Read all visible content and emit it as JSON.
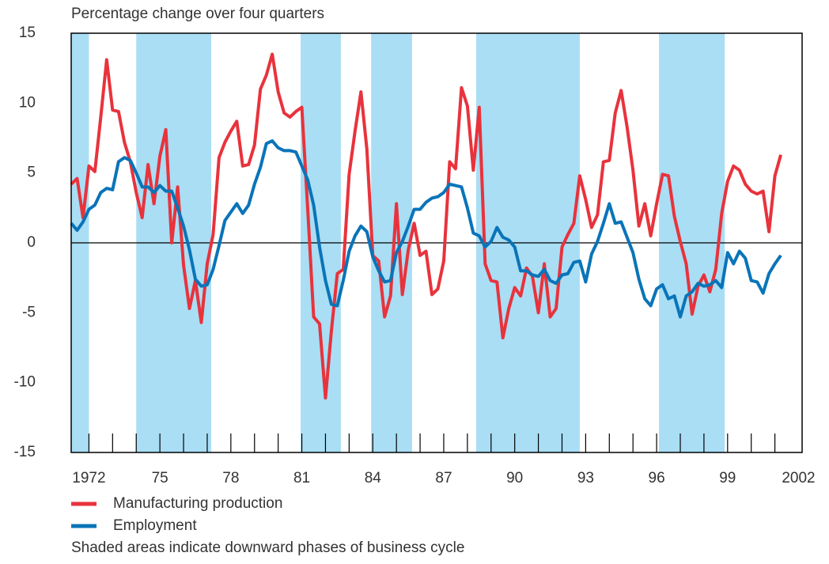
{
  "chart_data": {
    "type": "line",
    "title": "Percentage change over four quarters",
    "note": "Shaded areas indicate downward phases of business cycle",
    "xlim": [
      1971.25,
      2002.15
    ],
    "ylim": [
      -15,
      15
    ],
    "yticks": [
      -15,
      -10,
      -5,
      0,
      5,
      10,
      15
    ],
    "xticks": [
      1972,
      {
        "value": 1975,
        "label": "75"
      },
      {
        "value": 1978,
        "label": "78"
      },
      {
        "value": 1981,
        "label": "81"
      },
      {
        "value": 1984,
        "label": "84"
      },
      {
        "value": 1987,
        "label": "87"
      },
      {
        "value": 1990,
        "label": "90"
      },
      {
        "value": 1993,
        "label": "93"
      },
      {
        "value": 1996,
        "label": "96"
      },
      {
        "value": 1999,
        "label": "99"
      },
      2002
    ],
    "minor_xticks": [
      1972,
      1973,
      1974,
      1975,
      1976,
      1977,
      1978,
      1979,
      1980,
      1981,
      1982,
      1983,
      1984,
      1985,
      1986,
      1987,
      1988,
      1989,
      1990,
      1991,
      1992,
      1993,
      1994,
      1995,
      1996,
      1997,
      1998,
      1999,
      2000,
      2001
    ],
    "shaded": [
      [
        1971.25,
        1972.0
      ],
      [
        1974.0,
        1977.17
      ],
      [
        1980.95,
        1982.65
      ],
      [
        1983.93,
        1985.66
      ],
      [
        1988.37,
        1992.75
      ],
      [
        1996.1,
        1998.88
      ]
    ],
    "shade_color": "#a9def5",
    "zero_line": true,
    "x": [
      1971.25,
      1971.5,
      1971.75,
      1972,
      1972.25,
      1972.5,
      1972.75,
      1973,
      1973.25,
      1973.5,
      1973.75,
      1974,
      1974.25,
      1974.5,
      1974.75,
      1975,
      1975.25,
      1975.5,
      1975.75,
      1976,
      1976.25,
      1976.5,
      1976.75,
      1977,
      1977.25,
      1977.5,
      1977.75,
      1978,
      1978.25,
      1978.5,
      1978.75,
      1979,
      1979.25,
      1979.5,
      1979.75,
      1980,
      1980.25,
      1980.5,
      1980.75,
      1981,
      1981.25,
      1981.5,
      1981.75,
      1982,
      1982.25,
      1982.5,
      1982.75,
      1983,
      1983.25,
      1983.5,
      1983.75,
      1984,
      1984.25,
      1984.5,
      1984.75,
      1985,
      1985.25,
      1985.5,
      1985.75,
      1986,
      1986.25,
      1986.5,
      1986.75,
      1987,
      1987.25,
      1987.5,
      1987.75,
      1988,
      1988.25,
      1988.5,
      1988.75,
      1989,
      1989.25,
      1989.5,
      1989.75,
      1990,
      1990.25,
      1990.5,
      1990.75,
      1991,
      1991.25,
      1991.5,
      1991.75,
      1992,
      1992.25,
      1992.5,
      1992.75,
      1993,
      1993.25,
      1993.5,
      1993.75,
      1994,
      1994.25,
      1994.5,
      1994.75,
      1995,
      1995.25,
      1995.5,
      1995.75,
      1996,
      1996.25,
      1996.5,
      1996.75,
      1997,
      1997.25,
      1997.5,
      1997.75,
      1998,
      1998.25,
      1998.5,
      1998.75,
      1999,
      1999.25,
      1999.5,
      1999.75,
      2000,
      2000.25,
      2000.5,
      2000.75,
      2001,
      2001.25
    ],
    "series": [
      {
        "name": "Manufacturing production",
        "color": "#e8333c",
        "values": [
          4.2,
          4.6,
          1.8,
          5.5,
          5.1,
          9.0,
          13.1,
          9.5,
          9.4,
          7.2,
          5.8,
          3.6,
          1.8,
          5.6,
          2.8,
          6.2,
          8.1,
          0,
          4.0,
          -1.6,
          -4.7,
          -2.7,
          -5.7,
          -1.5,
          0.6,
          6.1,
          7.2,
          8.0,
          8.7,
          5.5,
          5.6,
          7.0,
          11.0,
          12.0,
          13.5,
          10.8,
          9.3,
          9.0,
          9.4,
          9.7,
          2.4,
          -5.3,
          -5.8,
          -11.1,
          -6.3,
          -2.2,
          -1.9,
          4.9,
          8.0,
          10.8,
          6.7,
          -0.9,
          -1.3,
          -5.3,
          -3.8,
          2.8,
          -3.7,
          -0.5,
          1.4,
          -0.9,
          -0.6,
          -3.7,
          -3.3,
          -1.3,
          5.8,
          5.3,
          11.1,
          9.8,
          5.2,
          9.7,
          -1.5,
          -2.7,
          -2.8,
          -6.8,
          -4.7,
          -3.2,
          -3.8,
          -1.8,
          -2.4,
          -5.0,
          -1.5,
          -5.3,
          -4.7,
          -0.3,
          0.6,
          1.4,
          4.8,
          3.1,
          1.1,
          2.0,
          5.8,
          5.9,
          9.3,
          10.9,
          8.3,
          5.2,
          1.2,
          2.8,
          0.5,
          2.8,
          4.9,
          4.8,
          1.9,
          0.1,
          -1.5,
          -5.1,
          -3.1,
          -2.3,
          -3.5,
          -1.9,
          2.1,
          4.4,
          5.5,
          5.2,
          4.2,
          3.7,
          3.5,
          3.7,
          0.8,
          4.8,
          6.3
        ]
      },
      {
        "name": "Employment",
        "color": "#0a74b8",
        "values": [
          1.4,
          0.9,
          1.5,
          2.4,
          2.7,
          3.6,
          3.9,
          3.8,
          5.8,
          6.1,
          5.9,
          5.0,
          4.0,
          4.0,
          3.6,
          4.1,
          3.7,
          3.7,
          2.5,
          1.2,
          -0.5,
          -2.6,
          -3.1,
          -3.0,
          -1.9,
          -0.2,
          1.6,
          2.2,
          2.8,
          2.1,
          2.7,
          4.2,
          5.4,
          7.1,
          7.3,
          6.8,
          6.6,
          6.6,
          6.5,
          5.5,
          4.5,
          2.7,
          -0.3,
          -2.7,
          -4.4,
          -4.5,
          -2.7,
          -0.6,
          0.5,
          1.2,
          0.8,
          -1.0,
          -2.0,
          -2.8,
          -2.7,
          -0.7,
          0.1,
          1.2,
          2.4,
          2.4,
          2.9,
          3.2,
          3.3,
          3.6,
          4.2,
          4.1,
          4.0,
          2.5,
          0.7,
          0.5,
          -0.3,
          0.1,
          1.1,
          0.4,
          0.2,
          -0.3,
          -2.0,
          -2.0,
          -2.3,
          -2.4,
          -1.9,
          -2.7,
          -2.9,
          -2.3,
          -2.2,
          -1.4,
          -1.3,
          -2.8,
          -0.8,
          0.1,
          1.4,
          2.8,
          1.4,
          1.5,
          0.4,
          -0.7,
          -2.6,
          -4.0,
          -4.5,
          -3.3,
          -3.0,
          -4.0,
          -3.8,
          -5.3,
          -3.8,
          -3.5,
          -2.9,
          -3.1,
          -3.0,
          -2.7,
          -3.2,
          -0.7,
          -1.5,
          -0.6,
          -1.1,
          -2.7,
          -2.8,
          -3.6,
          -2.2,
          -1.5,
          -0.9
        ]
      }
    ]
  }
}
